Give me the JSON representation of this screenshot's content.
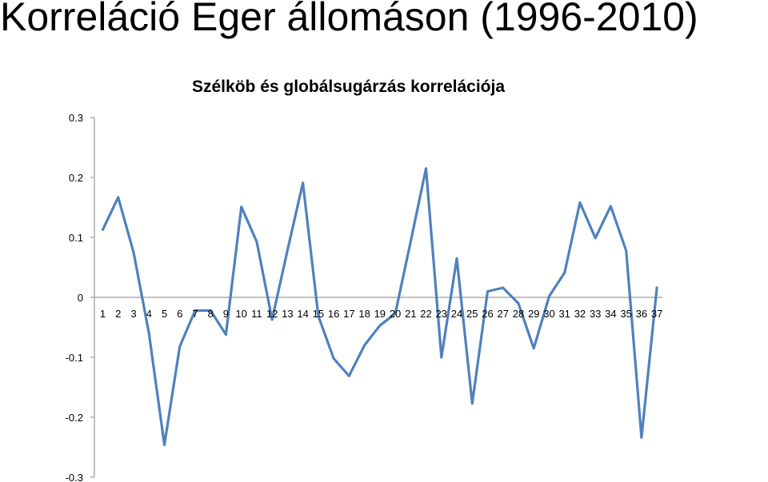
{
  "slide_title": "Korreláció Eger állomáson (1996-2010)",
  "chart_data": {
    "type": "line",
    "title": "Szélköb és globálsugárzás korrelációja",
    "xlabel": "",
    "ylabel": "",
    "ylim": [
      -0.3,
      0.3
    ],
    "y_ticks": [
      "0.3",
      "0.2",
      "0.1",
      "0",
      "-0.1",
      "-0.2",
      "-0.3"
    ],
    "grid": false,
    "categories": [
      "1",
      "2",
      "3",
      "4",
      "5",
      "6",
      "7",
      "8",
      "9",
      "10",
      "11",
      "12",
      "13",
      "14",
      "15",
      "16",
      "17",
      "18",
      "19",
      "20",
      "21",
      "22",
      "23",
      "24",
      "25",
      "26",
      "27",
      "28",
      "29",
      "30",
      "31",
      "32",
      "33",
      "34",
      "35",
      "36",
      "37"
    ],
    "values": [
      0.113,
      0.167,
      0.075,
      -0.06,
      -0.246,
      -0.082,
      -0.022,
      -0.022,
      -0.062,
      0.151,
      0.093,
      -0.037,
      0.079,
      0.191,
      -0.031,
      -0.102,
      -0.131,
      -0.08,
      -0.047,
      -0.027,
      0.093,
      0.215,
      -0.1,
      0.065,
      -0.177,
      0.01,
      0.016,
      -0.01,
      -0.085,
      0.002,
      0.041,
      0.158,
      0.099,
      0.152,
      0.078,
      -0.234,
      0.016
    ],
    "line_color": "#4F81BD"
  }
}
